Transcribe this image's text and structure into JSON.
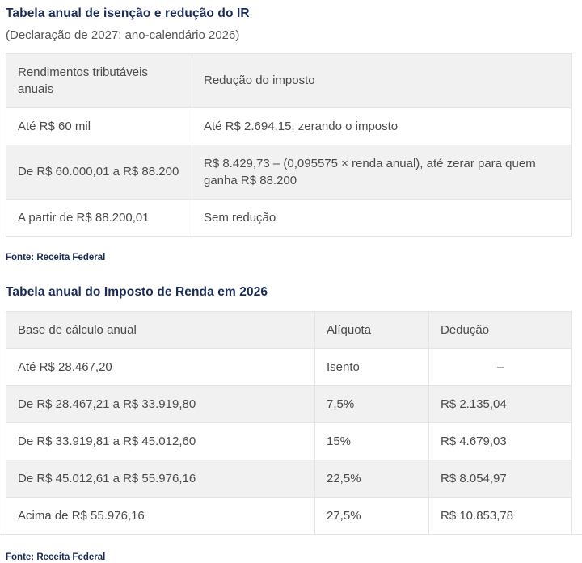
{
  "colors": {
    "accent_navy": "#1a2c55",
    "body_text": "#4a4a4a",
    "header_and_stripe_bg": "#f1f1f2",
    "border": "#e3e3e8"
  },
  "chart_data": [
    {
      "type": "table",
      "title": "Tabela anual de isenção e redução do IR",
      "subtitle": "(Declaração de 2027: ano-calendário 2026)",
      "columns": [
        "Rendimentos tributáveis anuais",
        "Redução do imposto"
      ],
      "rows": [
        [
          "Até R$ 60 mil",
          "Até R$ 2.694,15, zerando o imposto"
        ],
        [
          "De R$ 60.000,01 a R$ 88.200",
          "R$ 8.429,73 – (0,095575 × renda anual), até zerar para quem ganha R$ 88.200"
        ],
        [
          "A partir de R$ 88.200,01",
          "Sem redução"
        ]
      ],
      "source": "Fonte: Receita Federal",
      "layout": {
        "stripes": "even-rows-gray",
        "header_bg": "gray",
        "grid": true
      }
    },
    {
      "type": "table",
      "title": "Tabela anual do Imposto de Renda em 2026",
      "columns": [
        "Base de cálculo anual",
        "Alíquota",
        "Dedução"
      ],
      "rows": [
        [
          "Até R$ 28.467,20",
          "Isento",
          "–"
        ],
        [
          "De R$ 28.467,21 a R$ 33.919,80",
          "7,5%",
          "R$ 2.135,04"
        ],
        [
          "De R$ 33.919,81 a R$ 45.012,60",
          "15%",
          "R$ 4.679,03"
        ],
        [
          "De R$ 45.012,61 a R$ 55.976,16",
          "22,5%",
          "R$ 8.054,97"
        ],
        [
          "Acima de R$ 55.976,16",
          "27,5%",
          "R$ 10.853,78"
        ]
      ],
      "source": "Fonte: Receita Federal",
      "layout": {
        "stripes": "even-rows-gray",
        "header_bg": "gray",
        "grid": true
      }
    }
  ]
}
